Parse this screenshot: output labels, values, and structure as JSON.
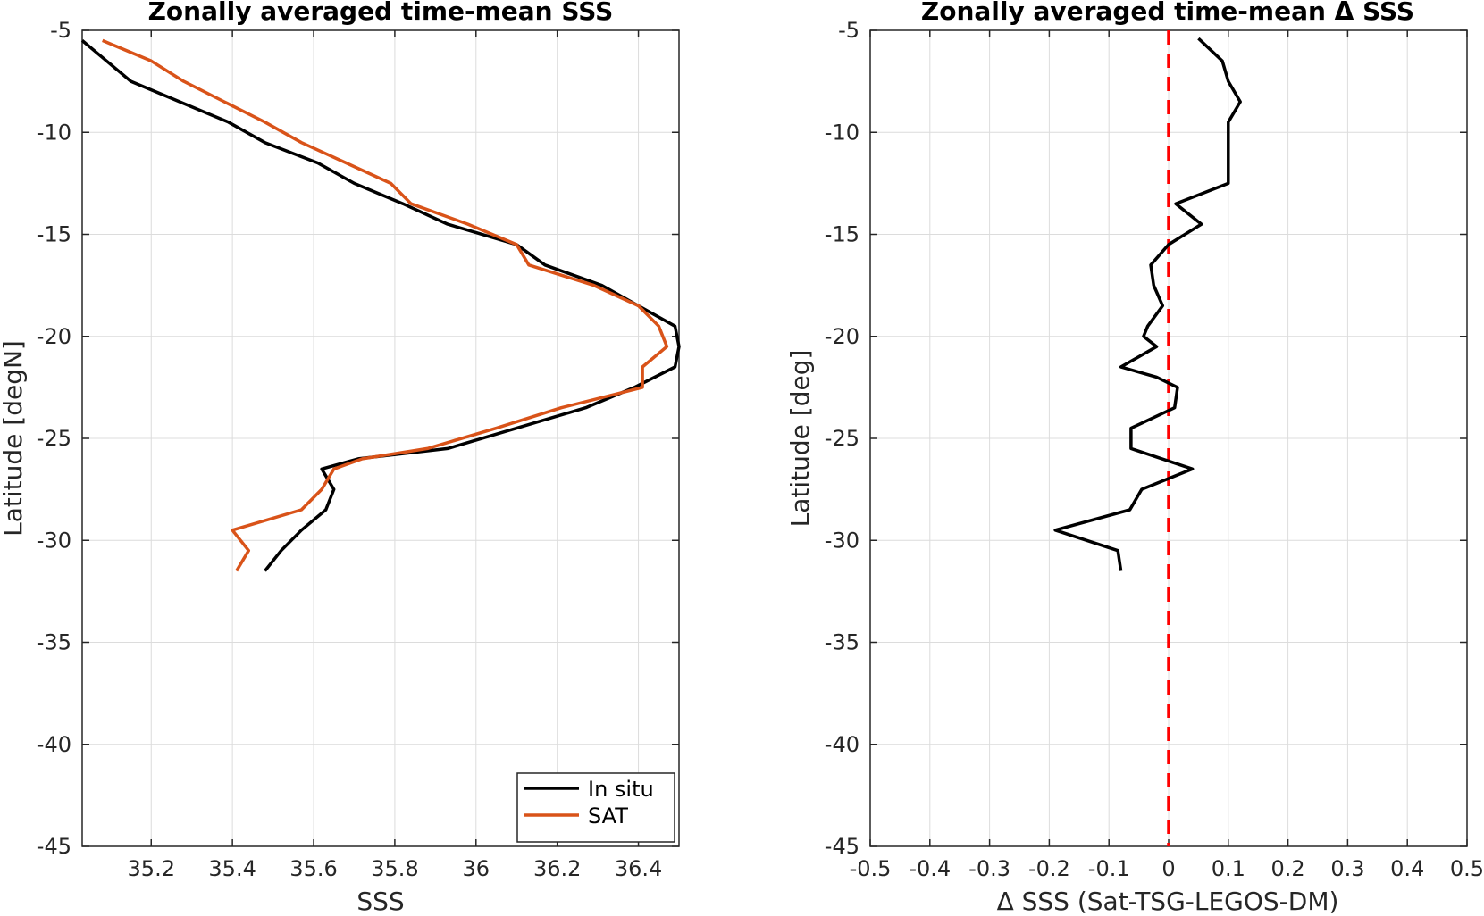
{
  "chart_data": [
    {
      "type": "line",
      "title": "Zonally averaged time-mean SSS",
      "xlabel": "SSS",
      "ylabel": "Latitude [degN]",
      "xlim": [
        35.03,
        36.5
      ],
      "ylim": [
        -45,
        -5
      ],
      "x_ticks": [
        35.2,
        35.4,
        35.6,
        35.8,
        36,
        36.2,
        36.4
      ],
      "x_tick_labels": [
        "35.2",
        "35.4",
        "35.6",
        "35.8",
        "36",
        "36.2",
        "36.4"
      ],
      "y_ticks": [
        -5,
        -10,
        -15,
        -20,
        -25,
        -30,
        -35,
        -40,
        -45
      ],
      "y_tick_labels": [
        "-5",
        "-10",
        "-15",
        "-20",
        "-25",
        "-30",
        "-35",
        "-40",
        "-45"
      ],
      "grid": true,
      "legend_position": "bottom-right",
      "series": [
        {
          "name": "In situ",
          "color": "#000000",
          "points": [
            [
              35.03,
              -5.5
            ],
            [
              35.09,
              -6.5
            ],
            [
              35.15,
              -7.5
            ],
            [
              35.27,
              -8.5
            ],
            [
              35.39,
              -9.5
            ],
            [
              35.48,
              -10.5
            ],
            [
              35.61,
              -11.5
            ],
            [
              35.7,
              -12.5
            ],
            [
              35.82,
              -13.5
            ],
            [
              35.93,
              -14.5
            ],
            [
              36.1,
              -15.5
            ],
            [
              36.17,
              -16.5
            ],
            [
              36.31,
              -17.5
            ],
            [
              36.4,
              -18.5
            ],
            [
              36.49,
              -19.5
            ],
            [
              36.5,
              -20.5
            ],
            [
              36.49,
              -21.5
            ],
            [
              36.39,
              -22.5
            ],
            [
              36.27,
              -23.5
            ],
            [
              36.1,
              -24.5
            ],
            [
              35.93,
              -25.5
            ],
            [
              35.71,
              -26
            ],
            [
              35.62,
              -26.5
            ],
            [
              35.65,
              -27.5
            ],
            [
              35.63,
              -28.5
            ],
            [
              35.57,
              -29.5
            ],
            [
              35.52,
              -30.5
            ],
            [
              35.48,
              -31.5
            ]
          ]
        },
        {
          "name": "SAT",
          "color": "#d95319",
          "points": [
            [
              35.08,
              -5.5
            ],
            [
              35.2,
              -6.5
            ],
            [
              35.28,
              -7.5
            ],
            [
              35.38,
              -8.5
            ],
            [
              35.48,
              -9.5
            ],
            [
              35.57,
              -10.5
            ],
            [
              35.68,
              -11.5
            ],
            [
              35.79,
              -12.5
            ],
            [
              35.84,
              -13.5
            ],
            [
              35.98,
              -14.5
            ],
            [
              36.1,
              -15.5
            ],
            [
              36.13,
              -16.5
            ],
            [
              36.29,
              -17.5
            ],
            [
              36.4,
              -18.5
            ],
            [
              36.45,
              -19.5
            ],
            [
              36.47,
              -20.5
            ],
            [
              36.41,
              -21.5
            ],
            [
              36.41,
              -22.5
            ],
            [
              36.21,
              -23.5
            ],
            [
              36.05,
              -24.5
            ],
            [
              35.88,
              -25.5
            ],
            [
              35.72,
              -26
            ],
            [
              35.65,
              -26.5
            ],
            [
              35.62,
              -27.5
            ],
            [
              35.57,
              -28.5
            ],
            [
              35.4,
              -29.5
            ],
            [
              35.44,
              -30.5
            ],
            [
              35.41,
              -31.5
            ]
          ]
        }
      ]
    },
    {
      "type": "line",
      "title": "Zonally averaged time-mean Δ SSS",
      "xlabel": "Δ SSS (Sat-TSG-LEGOS-DM)",
      "ylabel": "Latitude [deg]",
      "xlim": [
        -0.5,
        0.5
      ],
      "ylim": [
        -45,
        -5
      ],
      "x_ticks": [
        -0.5,
        -0.4,
        -0.3,
        -0.2,
        -0.1,
        0,
        0.1,
        0.2,
        0.3,
        0.4,
        0.5
      ],
      "x_tick_labels": [
        "-0.5",
        "-0.4",
        "-0.3",
        "-0.2",
        "-0.1",
        "0",
        "0.1",
        "0.2",
        "0.3",
        "0.4",
        "0.5"
      ],
      "y_ticks": [
        -5,
        -10,
        -15,
        -20,
        -25,
        -30,
        -35,
        -40,
        -45
      ],
      "y_tick_labels": [
        "-5",
        "-10",
        "-15",
        "-20",
        "-25",
        "-30",
        "-35",
        "-40",
        "-45"
      ],
      "grid": true,
      "reference_line": {
        "x": 0,
        "color": "#ff0000",
        "style": "dashed"
      },
      "series": [
        {
          "color": "#000000",
          "points": [
            [
              0.05,
              -5.4
            ],
            [
              0.09,
              -6.5
            ],
            [
              0.1,
              -7.5
            ],
            [
              0.12,
              -8.5
            ],
            [
              0.1,
              -9.5
            ],
            [
              0.1,
              -10.5
            ],
            [
              0.1,
              -11.5
            ],
            [
              0.1,
              -12.5
            ],
            [
              0.012,
              -13.5
            ],
            [
              0.055,
              -14.5
            ],
            [
              0.0,
              -15.5
            ],
            [
              -0.03,
              -16.5
            ],
            [
              -0.025,
              -17.5
            ],
            [
              -0.01,
              -18.5
            ],
            [
              -0.035,
              -19.5
            ],
            [
              -0.042,
              -20
            ],
            [
              -0.02,
              -20.5
            ],
            [
              -0.08,
              -21.5
            ],
            [
              -0.02,
              -22
            ],
            [
              0.015,
              -22.5
            ],
            [
              0.01,
              -23.5
            ],
            [
              -0.063,
              -24.5
            ],
            [
              -0.063,
              -25.5
            ],
            [
              0.04,
              -26.5
            ],
            [
              -0.045,
              -27.5
            ],
            [
              -0.065,
              -28.5
            ],
            [
              -0.19,
              -29.5
            ],
            [
              -0.085,
              -30.5
            ],
            [
              -0.08,
              -31.5
            ]
          ]
        }
      ]
    }
  ]
}
